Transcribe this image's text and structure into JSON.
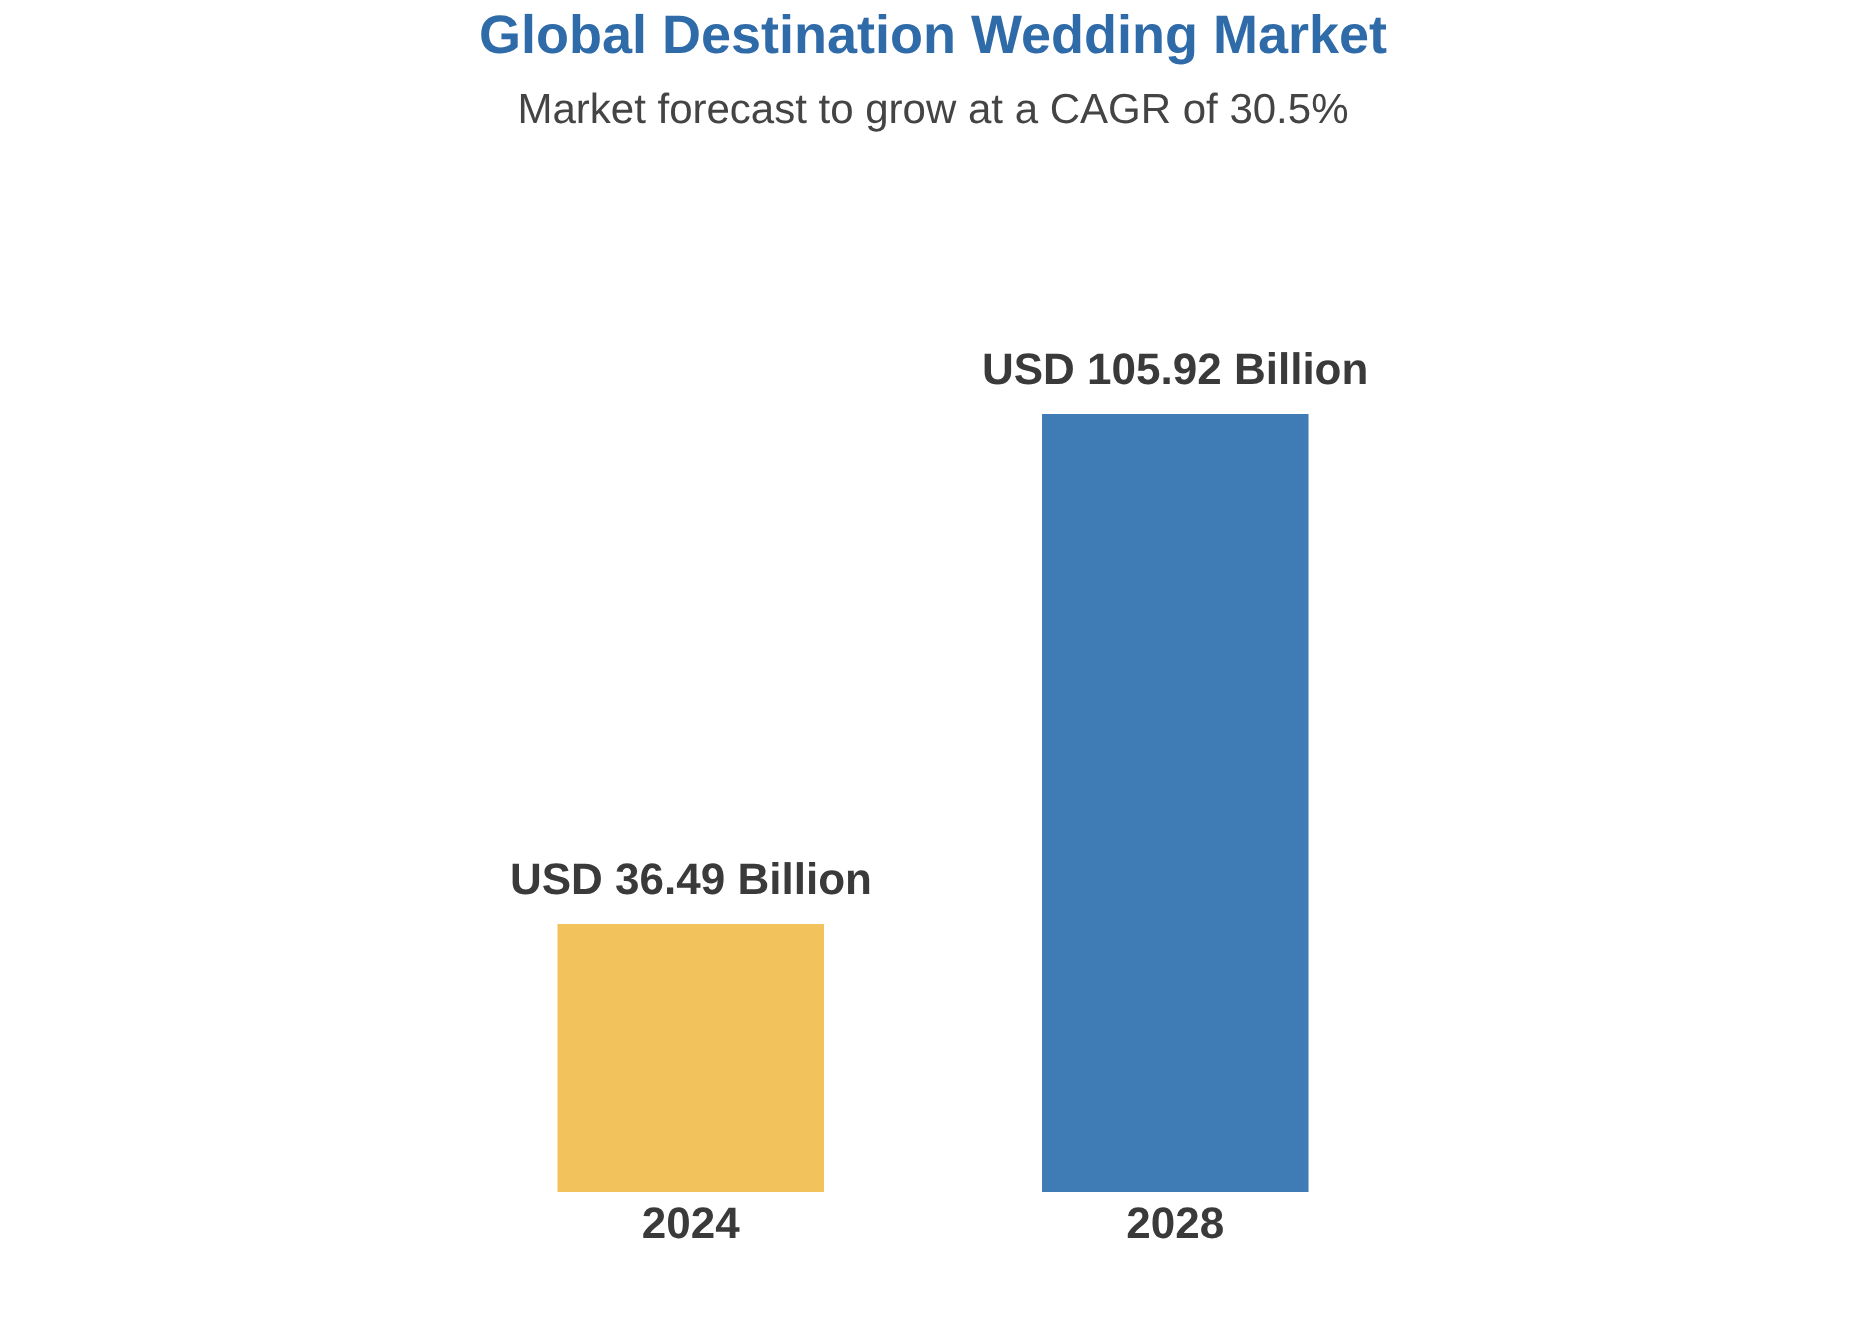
{
  "chart_data": {
    "type": "bar",
    "title": "Global Destination Wedding Market",
    "subtitle": "Market forecast to grow at a CAGR of 30.5%",
    "categories": [
      "2024",
      "2028"
    ],
    "values": [
      36.49,
      105.92
    ],
    "colors": [
      "#f2c35c",
      "#3f7bb4"
    ],
    "value_labels": [
      "USD 36.49 Billion",
      "USD 105.92 Billion"
    ],
    "tick_labels": "x"
  }
}
